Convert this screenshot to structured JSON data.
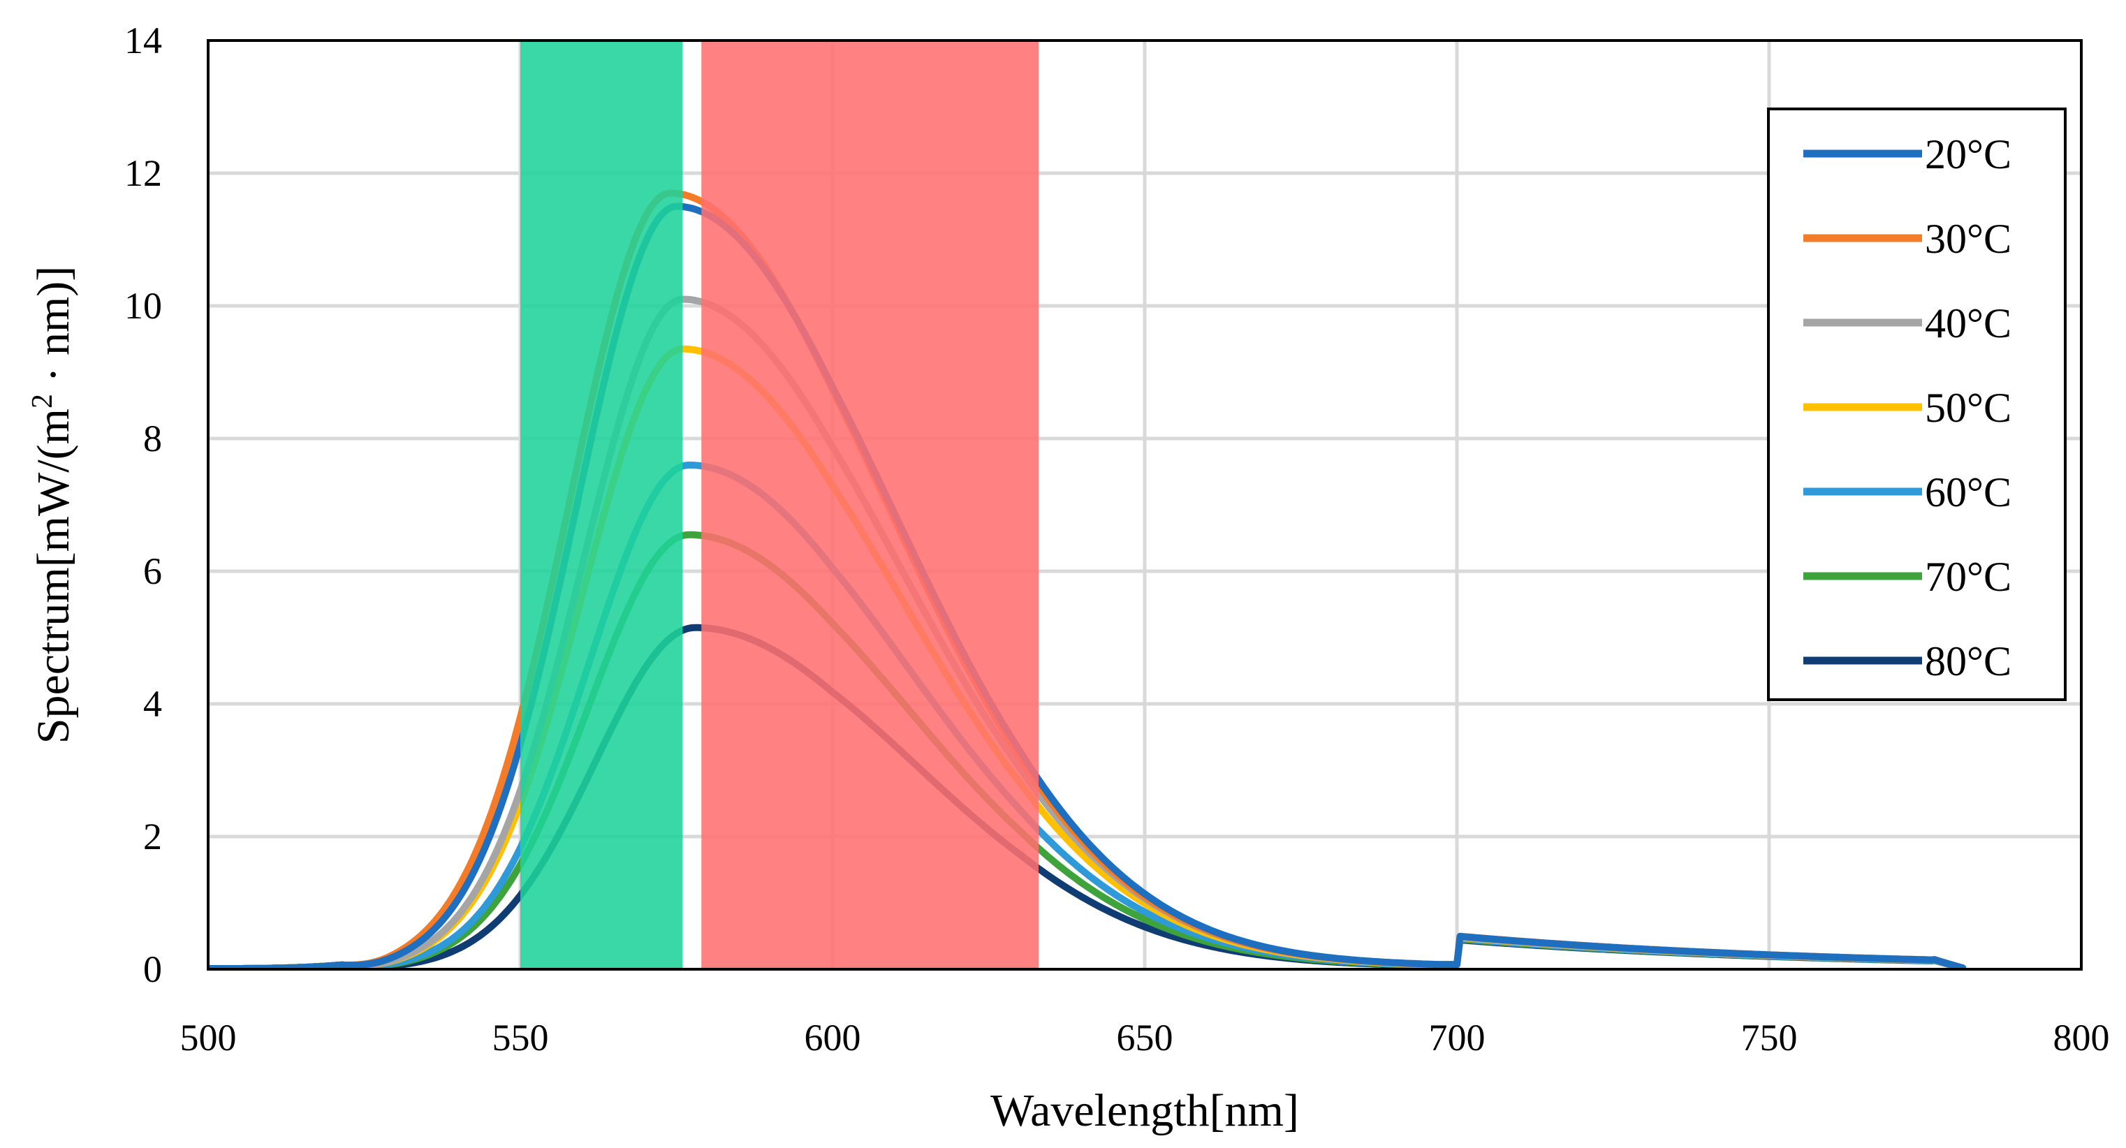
{
  "chart_data": {
    "type": "line",
    "xlabel": "Wavelength[nm]",
    "ylabel_main": "Spectrum[mW/(m",
    "ylabel_sup": "2",
    "ylabel_tail": " · nm)]",
    "xlim": [
      500,
      800
    ],
    "ylim": [
      0,
      14
    ],
    "x_ticks": [
      "500",
      "550",
      "600",
      "650",
      "700",
      "750",
      "800"
    ],
    "y_ticks": [
      "0",
      "2",
      "4",
      "6",
      "8",
      "10",
      "12",
      "14"
    ],
    "grid": true,
    "legend_position": "top-right",
    "bands": [
      {
        "name": "green-band",
        "from": 550,
        "to": 576,
        "color": "#1fd39a"
      },
      {
        "name": "red-band",
        "from": 579,
        "to": 633,
        "color": "#ff6f6f"
      }
    ],
    "series": [
      {
        "name": "20°C",
        "color": "#1f6fc0",
        "peak_x": 575,
        "peak": 11.5
      },
      {
        "name": "30°C",
        "color": "#f47b28",
        "peak_x": 574,
        "peak": 11.7
      },
      {
        "name": "40°C",
        "color": "#a5a5a5",
        "peak_x": 576,
        "peak": 10.1
      },
      {
        "name": "50°C",
        "color": "#ffc000",
        "peak_x": 576,
        "peak": 9.35
      },
      {
        "name": "60°C",
        "color": "#2e9ad8",
        "peak_x": 577,
        "peak": 7.6
      },
      {
        "name": "70°C",
        "color": "#3fa33c",
        "peak_x": 577,
        "peak": 6.55
      },
      {
        "name": "80°C",
        "color": "#0f3d73",
        "peak_x": 578,
        "peak": 5.15
      }
    ]
  }
}
